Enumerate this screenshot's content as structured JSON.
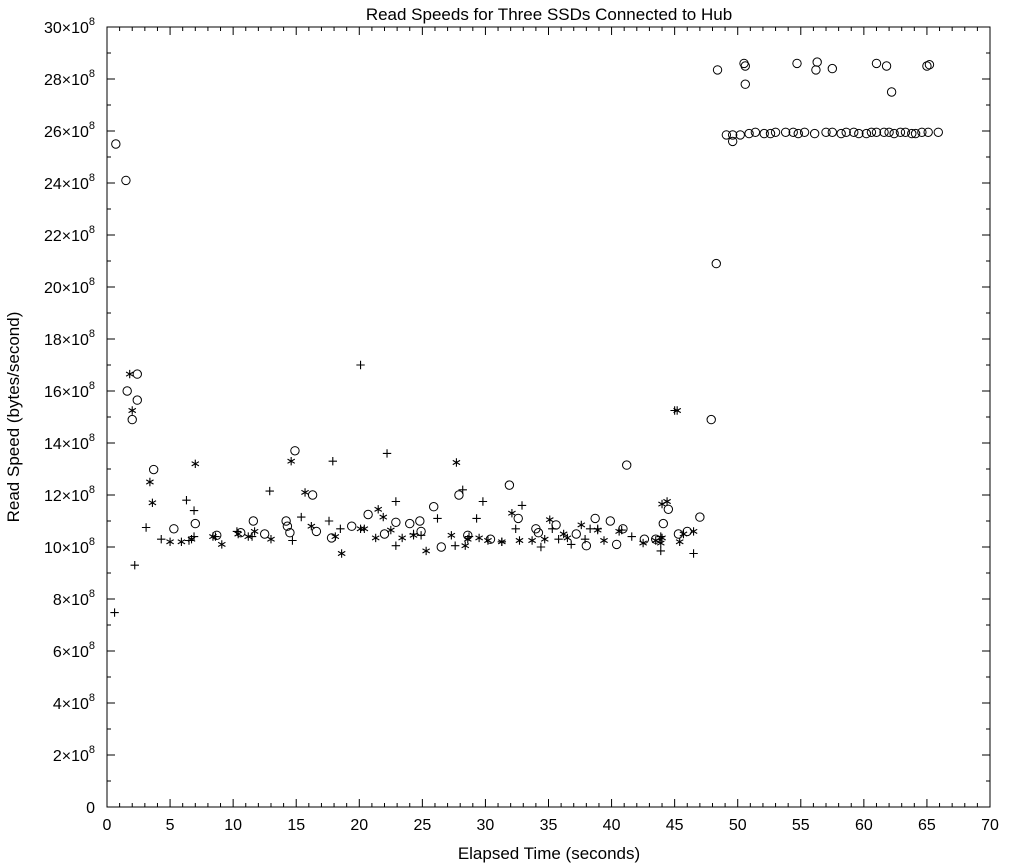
{
  "chart_data": {
    "type": "scatter",
    "title": "Read Speeds for Three SSDs Connected to Hub",
    "xlabel": "Elapsed Time (seconds)",
    "ylabel": "Read Speed (bytes/second)",
    "xlim": [
      0,
      70
    ],
    "ylim": [
      0,
      3000000000
    ],
    "x_ticks": [
      0,
      5,
      10,
      15,
      20,
      25,
      30,
      35,
      40,
      45,
      50,
      55,
      60,
      65,
      70
    ],
    "x_tick_labels": [
      "0",
      "5",
      "10",
      "15",
      "20",
      "25",
      "30",
      "35",
      "40",
      "45",
      "50",
      "55",
      "60",
      "65",
      "70"
    ],
    "y_ticks": [
      0,
      200000000,
      400000000,
      600000000,
      800000000,
      1000000000,
      1200000000,
      1400000000,
      1600000000,
      1800000000,
      2000000000,
      2200000000,
      2400000000,
      2600000000,
      2800000000,
      3000000000
    ],
    "y_tick_labels": [
      {
        "mantissa": "0",
        "exp": ""
      },
      {
        "mantissa": "2×10",
        "exp": "8"
      },
      {
        "mantissa": "4×10",
        "exp": "8"
      },
      {
        "mantissa": "6×10",
        "exp": "8"
      },
      {
        "mantissa": "8×10",
        "exp": "8"
      },
      {
        "mantissa": "10×10",
        "exp": "8"
      },
      {
        "mantissa": "12×10",
        "exp": "8"
      },
      {
        "mantissa": "14×10",
        "exp": "8"
      },
      {
        "mantissa": "16×10",
        "exp": "8"
      },
      {
        "mantissa": "18×10",
        "exp": "8"
      },
      {
        "mantissa": "20×10",
        "exp": "8"
      },
      {
        "mantissa": "22×10",
        "exp": "8"
      },
      {
        "mantissa": "24×10",
        "exp": "8"
      },
      {
        "mantissa": "26×10",
        "exp": "8"
      },
      {
        "mantissa": "28×10",
        "exp": "8"
      },
      {
        "mantissa": "30×10",
        "exp": "8"
      }
    ],
    "grid": false,
    "legend": "none",
    "series": [
      {
        "marker": "circle",
        "points": [
          [
            0.7,
            2550000000
          ],
          [
            1.5,
            2410000000
          ],
          [
            1.6,
            1600000000
          ],
          [
            2.0,
            1490000000
          ],
          [
            2.4,
            1665000000
          ],
          [
            2.4,
            1565000000
          ],
          [
            3.7,
            1298000000
          ],
          [
            5.3,
            1070000000
          ],
          [
            7.0,
            1090000000
          ],
          [
            8.7,
            1045000000
          ],
          [
            10.6,
            1055000000
          ],
          [
            11.6,
            1100000000
          ],
          [
            12.5,
            1050000000
          ],
          [
            14.2,
            1100000000
          ],
          [
            14.3,
            1080000000
          ],
          [
            14.5,
            1055000000
          ],
          [
            14.9,
            1370000000
          ],
          [
            16.3,
            1200000000
          ],
          [
            16.6,
            1060000000
          ],
          [
            17.8,
            1035000000
          ],
          [
            19.4,
            1080000000
          ],
          [
            20.7,
            1125000000
          ],
          [
            22.0,
            1050000000
          ],
          [
            22.9,
            1095000000
          ],
          [
            24.0,
            1090000000
          ],
          [
            24.8,
            1100000000
          ],
          [
            24.9,
            1060000000
          ],
          [
            25.9,
            1155000000
          ],
          [
            26.5,
            1000000000
          ],
          [
            27.9,
            1200000000
          ],
          [
            28.6,
            1045000000
          ],
          [
            30.4,
            1030000000
          ],
          [
            31.9,
            1238000000
          ],
          [
            32.6,
            1110000000
          ],
          [
            34.0,
            1070000000
          ],
          [
            34.2,
            1055000000
          ],
          [
            35.6,
            1085000000
          ],
          [
            37.2,
            1050000000
          ],
          [
            38.0,
            1005000000
          ],
          [
            38.7,
            1110000000
          ],
          [
            39.9,
            1100000000
          ],
          [
            40.4,
            1010000000
          ],
          [
            40.9,
            1070000000
          ],
          [
            41.2,
            1315000000
          ],
          [
            42.6,
            1030000000
          ],
          [
            43.5,
            1030000000
          ],
          [
            44.1,
            1090000000
          ],
          [
            44.5,
            1145000000
          ],
          [
            45.3,
            1050000000
          ],
          [
            46.0,
            1060000000
          ],
          [
            47.0,
            1115000000
          ],
          [
            47.9,
            1490000000
          ],
          [
            48.3,
            2090000000
          ],
          [
            48.4,
            2835000000
          ],
          [
            49.1,
            2585000000
          ],
          [
            49.6,
            2585000000
          ],
          [
            49.6,
            2560000000
          ],
          [
            50.2,
            2585000000
          ],
          [
            50.5,
            2860000000
          ],
          [
            50.6,
            2850000000
          ],
          [
            50.6,
            2780000000
          ],
          [
            50.9,
            2590000000
          ],
          [
            51.4,
            2595000000
          ],
          [
            52.1,
            2590000000
          ],
          [
            52.6,
            2590000000
          ],
          [
            53.0,
            2595000000
          ],
          [
            53.8,
            2595000000
          ],
          [
            54.4,
            2595000000
          ],
          [
            54.8,
            2590000000
          ],
          [
            54.7,
            2860000000
          ],
          [
            55.3,
            2595000000
          ],
          [
            56.1,
            2590000000
          ],
          [
            56.2,
            2835000000
          ],
          [
            56.3,
            2865000000
          ],
          [
            57.0,
            2595000000
          ],
          [
            57.5,
            2595000000
          ],
          [
            57.5,
            2840000000
          ],
          [
            58.2,
            2590000000
          ],
          [
            58.6,
            2595000000
          ],
          [
            59.2,
            2595000000
          ],
          [
            59.6,
            2590000000
          ],
          [
            60.2,
            2590000000
          ],
          [
            60.6,
            2595000000
          ],
          [
            61.0,
            2595000000
          ],
          [
            61.0,
            2860000000
          ],
          [
            61.6,
            2595000000
          ],
          [
            61.8,
            2850000000
          ],
          [
            62.0,
            2595000000
          ],
          [
            62.2,
            2750000000
          ],
          [
            62.4,
            2590000000
          ],
          [
            62.9,
            2595000000
          ],
          [
            63.3,
            2595000000
          ],
          [
            63.8,
            2590000000
          ],
          [
            64.1,
            2590000000
          ],
          [
            64.6,
            2595000000
          ],
          [
            65.0,
            2850000000
          ],
          [
            65.2,
            2855000000
          ],
          [
            65.1,
            2595000000
          ],
          [
            65.9,
            2595000000
          ]
        ]
      },
      {
        "marker": "asterisk",
        "points": [
          [
            1.8,
            1665000000
          ],
          [
            2.0,
            1525000000
          ],
          [
            3.4,
            1250000000
          ],
          [
            3.6,
            1170000000
          ],
          [
            5.0,
            1020000000
          ],
          [
            5.9,
            1020000000
          ],
          [
            6.7,
            1030000000
          ],
          [
            7.0,
            1320000000
          ],
          [
            8.4,
            1040000000
          ],
          [
            9.1,
            1010000000
          ],
          [
            10.4,
            1050000000
          ],
          [
            11.2,
            1040000000
          ],
          [
            11.7,
            1060000000
          ],
          [
            13.0,
            1030000000
          ],
          [
            14.6,
            1330000000
          ],
          [
            15.7,
            1210000000
          ],
          [
            16.2,
            1080000000
          ],
          [
            18.1,
            1040000000
          ],
          [
            18.6,
            975000000
          ],
          [
            20.1,
            1070000000
          ],
          [
            20.4,
            1070000000
          ],
          [
            21.3,
            1035000000
          ],
          [
            21.5,
            1145000000
          ],
          [
            21.9,
            1115000000
          ],
          [
            22.5,
            1065000000
          ],
          [
            23.4,
            1035000000
          ],
          [
            24.3,
            1045000000
          ],
          [
            25.3,
            985000000
          ],
          [
            27.3,
            1045000000
          ],
          [
            27.7,
            1325000000
          ],
          [
            28.4,
            1005000000
          ],
          [
            28.6,
            1030000000
          ],
          [
            29.5,
            1035000000
          ],
          [
            30.2,
            1025000000
          ],
          [
            31.3,
            1020000000
          ],
          [
            32.1,
            1130000000
          ],
          [
            32.7,
            1025000000
          ],
          [
            33.7,
            1025000000
          ],
          [
            34.7,
            1030000000
          ],
          [
            35.1,
            1105000000
          ],
          [
            36.2,
            1050000000
          ],
          [
            36.5,
            1035000000
          ],
          [
            37.6,
            1085000000
          ],
          [
            38.9,
            1065000000
          ],
          [
            39.4,
            1025000000
          ],
          [
            40.6,
            1060000000
          ],
          [
            42.5,
            1015000000
          ],
          [
            43.5,
            1025000000
          ],
          [
            43.9,
            1015000000
          ],
          [
            44.0,
            1165000000
          ],
          [
            44.0,
            1035000000
          ],
          [
            44.4,
            1175000000
          ],
          [
            45.2,
            1525000000
          ],
          [
            45.4,
            1020000000
          ],
          [
            45.7,
            1050000000
          ],
          [
            46.5,
            1060000000
          ]
        ]
      },
      {
        "marker": "plus",
        "points": [
          [
            0.6,
            748000000
          ],
          [
            2.2,
            930000000
          ],
          [
            3.1,
            1075000000
          ],
          [
            4.3,
            1030000000
          ],
          [
            6.3,
            1180000000
          ],
          [
            6.5,
            1025000000
          ],
          [
            6.9,
            1040000000
          ],
          [
            6.9,
            1140000000
          ],
          [
            8.6,
            1040000000
          ],
          [
            10.3,
            1060000000
          ],
          [
            11.5,
            1040000000
          ],
          [
            12.9,
            1215000000
          ],
          [
            14.7,
            1025000000
          ],
          [
            15.4,
            1115000000
          ],
          [
            17.6,
            1100000000
          ],
          [
            17.9,
            1330000000
          ],
          [
            18.5,
            1070000000
          ],
          [
            20.1,
            1700000000
          ],
          [
            22.2,
            1360000000
          ],
          [
            22.9,
            1175000000
          ],
          [
            22.9,
            1005000000
          ],
          [
            24.3,
            1050000000
          ],
          [
            24.9,
            1045000000
          ],
          [
            26.2,
            1110000000
          ],
          [
            27.6,
            1005000000
          ],
          [
            28.2,
            1220000000
          ],
          [
            28.7,
            1040000000
          ],
          [
            29.3,
            1110000000
          ],
          [
            29.8,
            1175000000
          ],
          [
            31.3,
            1020000000
          ],
          [
            32.4,
            1070000000
          ],
          [
            32.9,
            1160000000
          ],
          [
            34.4,
            1000000000
          ],
          [
            35.3,
            1070000000
          ],
          [
            35.8,
            1030000000
          ],
          [
            36.8,
            1010000000
          ],
          [
            37.9,
            1030000000
          ],
          [
            38.3,
            1070000000
          ],
          [
            38.9,
            1070000000
          ],
          [
            40.8,
            1065000000
          ],
          [
            41.6,
            1040000000
          ],
          [
            43.9,
            1040000000
          ],
          [
            43.9,
            985000000
          ],
          [
            45.0,
            1525000000
          ],
          [
            46.5,
            975000000
          ]
        ]
      }
    ]
  }
}
